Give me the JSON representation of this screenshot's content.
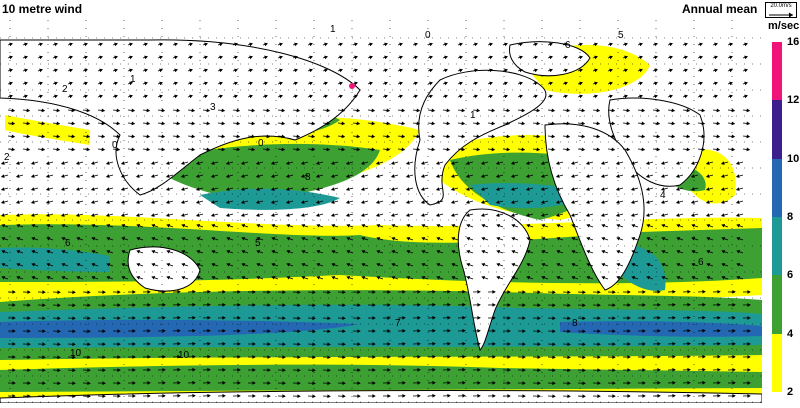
{
  "header": {
    "title": "10 metre wind",
    "period": "Annual mean"
  },
  "reference_vector": {
    "label": "20.0m/s"
  },
  "legend": {
    "unit": "m/sec",
    "levels": [
      {
        "value": "2",
        "color": "#ffff00"
      },
      {
        "value": "4",
        "color": "#3ca032"
      },
      {
        "value": "6",
        "color": "#1e9a96"
      },
      {
        "value": "8",
        "color": "#2468b4"
      },
      {
        "value": "10",
        "color": "#3c1e8c"
      },
      {
        "value": "12",
        "color": "#f0147a"
      },
      {
        "value": "16",
        "color": ""
      }
    ]
  },
  "contour_labels": [
    "1",
    "2",
    "3",
    "0",
    "6",
    "8",
    "5",
    "7",
    "10",
    "1",
    "0",
    "6",
    "8",
    "2",
    "4",
    "0",
    "6",
    "5",
    "10",
    "1"
  ],
  "colors": {
    "ocean": "#ffffff",
    "coast": "#000000",
    "arrow": "#000000",
    "grid": "#000000"
  }
}
